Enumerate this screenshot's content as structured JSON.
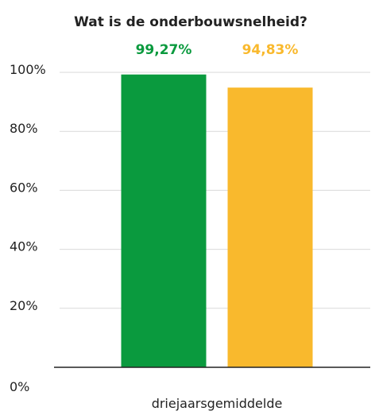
{
  "chart_data": {
    "type": "bar",
    "title": "Wat is de onderbouwsnelheid?",
    "categories": [
      "driejaarsgemiddelde"
    ],
    "series": [
      {
        "values": [
          99.27
        ],
        "label": "99,27%",
        "color": "#0a9a3e"
      },
      {
        "values": [
          94.83
        ],
        "label": "94,83%",
        "color": "#f9b92d"
      }
    ],
    "ylim": [
      0,
      100
    ],
    "yticks": [
      {
        "value": 0,
        "label": "0%"
      },
      {
        "value": 20,
        "label": "20%"
      },
      {
        "value": 40,
        "label": "40%"
      },
      {
        "value": 60,
        "label": "60%"
      },
      {
        "value": 80,
        "label": "80%"
      },
      {
        "value": 100,
        "label": "100%"
      }
    ],
    "grid": true,
    "gridColor": "#d9d9d9",
    "axisColor": "#222222"
  }
}
